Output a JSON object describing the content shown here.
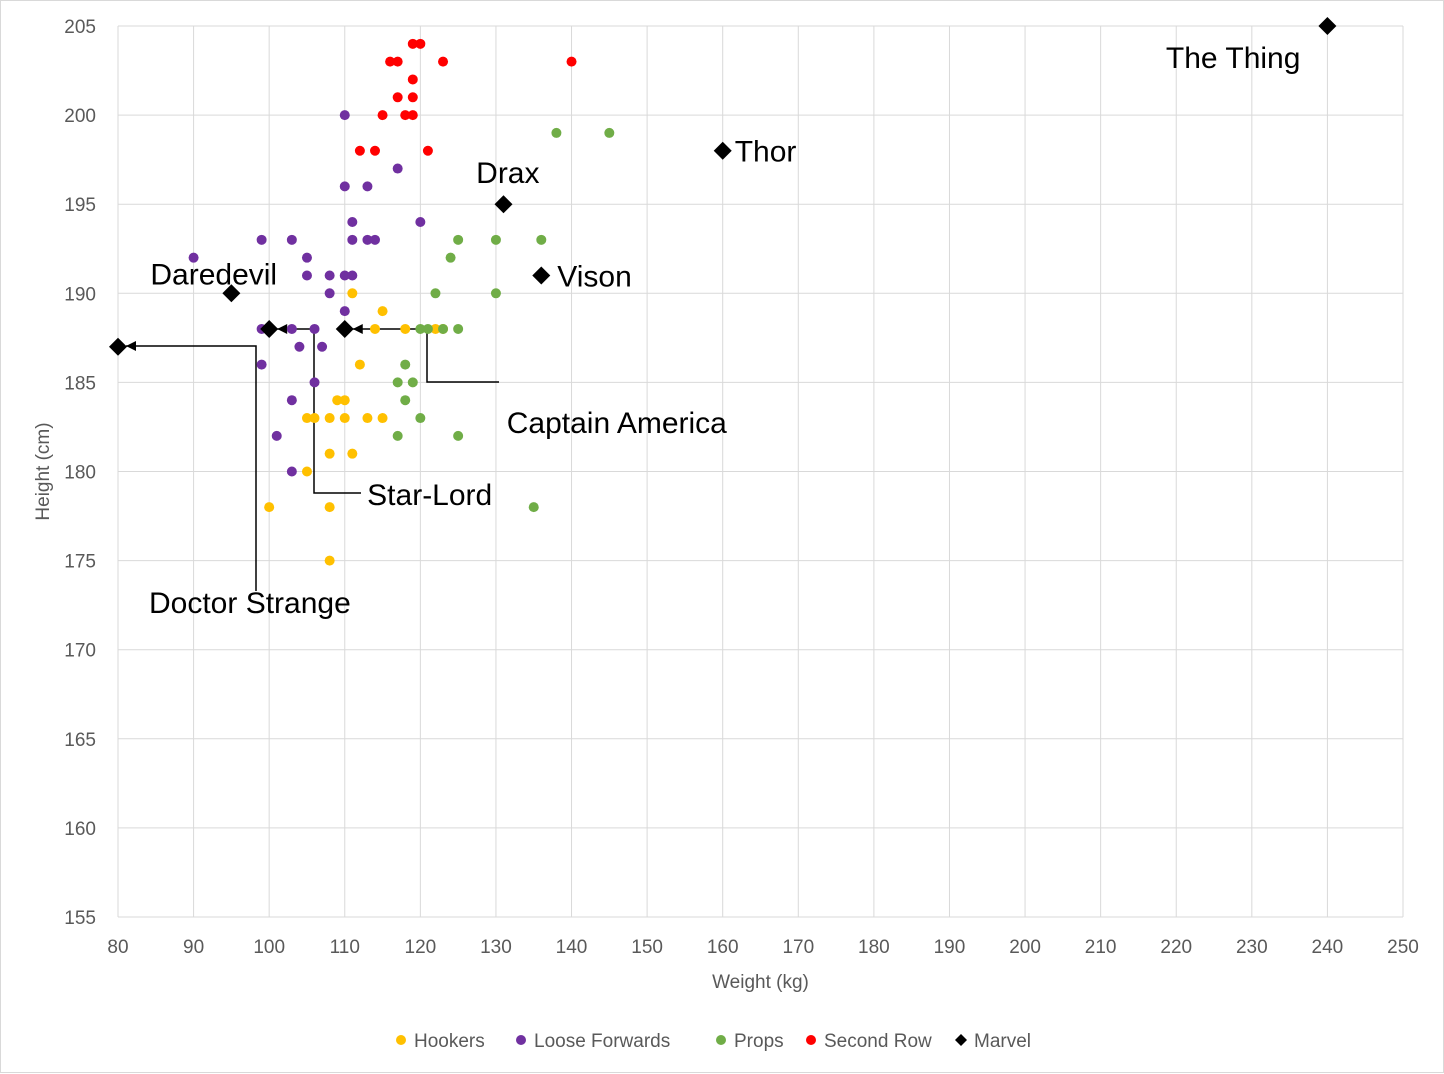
{
  "chart_data": {
    "type": "scatter",
    "title": "",
    "xlabel": "Weight (kg)",
    "ylabel": "Height (cm)",
    "xlim": [
      80,
      250
    ],
    "ylim": [
      155,
      205
    ],
    "xticks": [
      80,
      90,
      100,
      110,
      120,
      130,
      140,
      150,
      160,
      170,
      180,
      190,
      200,
      210,
      220,
      230,
      240,
      250
    ],
    "yticks": [
      155,
      160,
      165,
      170,
      175,
      180,
      185,
      190,
      195,
      200,
      205
    ],
    "grid": true,
    "legend_position": "bottom",
    "series": [
      {
        "name": "Hookers",
        "color": "#ffc000",
        "marker": "circle",
        "points": [
          [
            111,
            190
          ],
          [
            115,
            189
          ],
          [
            114,
            188
          ],
          [
            118,
            188
          ],
          [
            122,
            188
          ],
          [
            123,
            188
          ],
          [
            112,
            186
          ],
          [
            109,
            184
          ],
          [
            110,
            184
          ],
          [
            105,
            183
          ],
          [
            106,
            183
          ],
          [
            108,
            183
          ],
          [
            110,
            183
          ],
          [
            113,
            183
          ],
          [
            115,
            183
          ],
          [
            108,
            181
          ],
          [
            111,
            181
          ],
          [
            105,
            180
          ],
          [
            100,
            178
          ],
          [
            108,
            178
          ],
          [
            108,
            175
          ]
        ]
      },
      {
        "name": "Loose Forwards",
        "color": "#7030a0",
        "marker": "circle",
        "points": [
          [
            110,
            200
          ],
          [
            117,
            197
          ],
          [
            110,
            196
          ],
          [
            113,
            196
          ],
          [
            111,
            194
          ],
          [
            120,
            194
          ],
          [
            99,
            193
          ],
          [
            103,
            193
          ],
          [
            111,
            193
          ],
          [
            113,
            193
          ],
          [
            114,
            193
          ],
          [
            90,
            192
          ],
          [
            105,
            192
          ],
          [
            105,
            191
          ],
          [
            108,
            191
          ],
          [
            110,
            191
          ],
          [
            111,
            191
          ],
          [
            108,
            190
          ],
          [
            110,
            189
          ],
          [
            99,
            188
          ],
          [
            103,
            188
          ],
          [
            106,
            188
          ],
          [
            104,
            187
          ],
          [
            107,
            187
          ],
          [
            99,
            186
          ],
          [
            106,
            185
          ],
          [
            103,
            184
          ],
          [
            101,
            182
          ],
          [
            103,
            180
          ]
        ]
      },
      {
        "name": "Props",
        "color": "#70ad47",
        "marker": "circle",
        "points": [
          [
            138,
            199
          ],
          [
            145,
            199
          ],
          [
            125,
            193
          ],
          [
            130,
            193
          ],
          [
            136,
            193
          ],
          [
            124,
            192
          ],
          [
            122,
            190
          ],
          [
            130,
            190
          ],
          [
            120,
            188
          ],
          [
            121,
            188
          ],
          [
            123,
            188
          ],
          [
            125,
            188
          ],
          [
            118,
            186
          ],
          [
            117,
            185
          ],
          [
            119,
            185
          ],
          [
            118,
            184
          ],
          [
            120,
            183
          ],
          [
            117,
            182
          ],
          [
            125,
            182
          ],
          [
            135,
            178
          ]
        ]
      },
      {
        "name": "Second Row",
        "color": "#ff0000",
        "marker": "circle",
        "points": [
          [
            119,
            204
          ],
          [
            120,
            204
          ],
          [
            116,
            203
          ],
          [
            117,
            203
          ],
          [
            123,
            203
          ],
          [
            140,
            203
          ],
          [
            119,
            202
          ],
          [
            117,
            201
          ],
          [
            119,
            201
          ],
          [
            115,
            200
          ],
          [
            118,
            200
          ],
          [
            119,
            200
          ],
          [
            112,
            198
          ],
          [
            114,
            198
          ],
          [
            121,
            198
          ]
        ]
      },
      {
        "name": "Marvel",
        "color": "#000000",
        "marker": "diamond",
        "points": [
          [
            240,
            205
          ],
          [
            160,
            198
          ],
          [
            131,
            195
          ],
          [
            136,
            191
          ],
          [
            95,
            190
          ],
          [
            110,
            188
          ],
          [
            100,
            188
          ],
          [
            80,
            187
          ]
        ]
      }
    ],
    "annotations": [
      {
        "text": "The Thing",
        "x": 240,
        "y": 205
      },
      {
        "text": "Thor",
        "x": 160,
        "y": 198
      },
      {
        "text": "Drax",
        "x": 131,
        "y": 195
      },
      {
        "text": "Vison",
        "x": 136,
        "y": 191
      },
      {
        "text": "Daredevil",
        "x": 95,
        "y": 190
      },
      {
        "text": "Captain America",
        "x": 110,
        "y": 188
      },
      {
        "text": "Star-Lord",
        "x": 100,
        "y": 188
      },
      {
        "text": "Doctor Strange",
        "x": 80,
        "y": 187
      }
    ]
  }
}
